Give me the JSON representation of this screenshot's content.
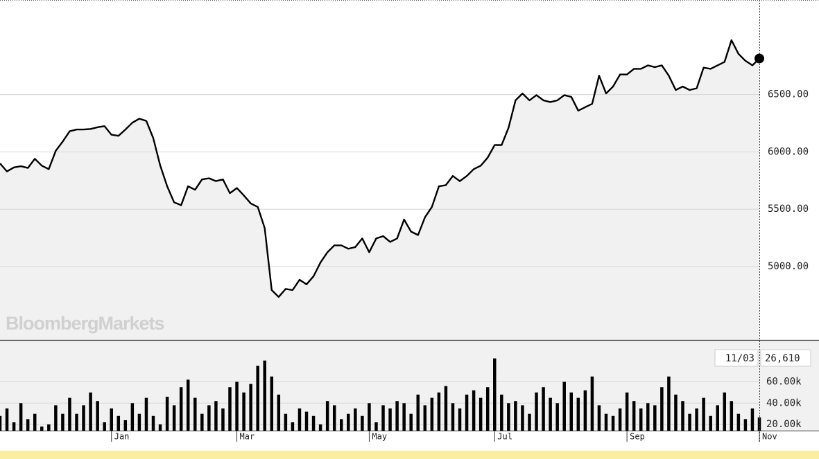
{
  "chart_data": [
    {
      "type": "line",
      "watermark": "BloombergMarkets",
      "color": "#000000",
      "area_color": "#f1f1f1",
      "categories": [
        null,
        null,
        null,
        null,
        null,
        null,
        null,
        null,
        null,
        null,
        null,
        null,
        null,
        null,
        null,
        null,
        "Jan",
        null,
        null,
        null,
        null,
        null,
        null,
        null,
        null,
        null,
        null,
        null,
        null,
        null,
        null,
        null,
        null,
        null,
        "Mar",
        null,
        null,
        null,
        null,
        null,
        null,
        null,
        null,
        null,
        null,
        null,
        null,
        null,
        null,
        null,
        null,
        null,
        null,
        "May",
        null,
        null,
        null,
        null,
        null,
        null,
        null,
        null,
        null,
        null,
        null,
        null,
        null,
        null,
        null,
        null,
        null,
        "Jul",
        null,
        null,
        null,
        null,
        null,
        null,
        null,
        null,
        null,
        null,
        null,
        null,
        null,
        null,
        null,
        null,
        null,
        null,
        "Sep",
        null,
        null,
        null,
        null,
        null,
        null,
        null,
        null,
        null,
        null,
        null,
        null,
        null,
        null,
        null,
        null,
        null,
        null,
        "Nov"
      ],
      "values": [
        5900,
        5830,
        5865,
        5875,
        5860,
        5940,
        5880,
        5850,
        6010,
        6090,
        6180,
        6195,
        6195,
        6200,
        6215,
        6225,
        6150,
        6140,
        6195,
        6255,
        6290,
        6270,
        6120,
        5880,
        5700,
        5560,
        5535,
        5700,
        5670,
        5760,
        5770,
        5745,
        5760,
        5640,
        5685,
        5620,
        5550,
        5520,
        5335,
        4795,
        4735,
        4805,
        4795,
        4885,
        4845,
        4915,
        5035,
        5125,
        5185,
        5185,
        5155,
        5170,
        5245,
        5125,
        5245,
        5265,
        5215,
        5245,
        5410,
        5305,
        5275,
        5430,
        5520,
        5700,
        5710,
        5790,
        5745,
        5790,
        5850,
        5880,
        5950,
        6060,
        6060,
        6210,
        6450,
        6510,
        6450,
        6495,
        6450,
        6435,
        6450,
        6495,
        6480,
        6360,
        6390,
        6420,
        6665,
        6510,
        6570,
        6675,
        6675,
        6725,
        6725,
        6755,
        6740,
        6755,
        6665,
        6540,
        6570,
        6540,
        6555,
        6735,
        6725,
        6755,
        6785,
        6975,
        6855,
        6795,
        6755,
        6815
      ],
      "ylim": [
        4360,
        7325
      ],
      "yticks": [
        {
          "value": 5000,
          "label": "5000.00"
        },
        {
          "value": 5500,
          "label": "5500.00"
        },
        {
          "value": 6000,
          "label": "6000.00"
        },
        {
          "value": 6500,
          "label": "6500.00"
        }
      ],
      "grid": true
    },
    {
      "type": "bar",
      "color": "#000000",
      "cursor_label": "11/03",
      "values": [
        28000,
        35000,
        22000,
        40000,
        25000,
        30000,
        18000,
        20000,
        38000,
        30000,
        45000,
        30000,
        38000,
        50000,
        42000,
        22000,
        35000,
        28000,
        24000,
        40000,
        30000,
        45000,
        28000,
        20000,
        46000,
        38000,
        55000,
        62000,
        45000,
        30000,
        38000,
        42000,
        35000,
        55000,
        60000,
        50000,
        58000,
        75000,
        80000,
        65000,
        48000,
        30000,
        22000,
        35000,
        32000,
        28000,
        20000,
        42000,
        38000,
        25000,
        30000,
        35000,
        28000,
        40000,
        22000,
        38000,
        35000,
        42000,
        40000,
        30000,
        48000,
        38000,
        45000,
        50000,
        56000,
        40000,
        35000,
        48000,
        52000,
        45000,
        55000,
        82000,
        48000,
        40000,
        42000,
        38000,
        30000,
        50000,
        55000,
        45000,
        40000,
        60000,
        50000,
        45000,
        52000,
        65000,
        38000,
        30000,
        28000,
        35000,
        50000,
        42000,
        35000,
        40000,
        38000,
        55000,
        65000,
        48000,
        42000,
        30000,
        35000,
        45000,
        28000,
        38000,
        50000,
        42000,
        30000,
        25000,
        35000,
        26610
      ],
      "value_labels": [
        null,
        null,
        null,
        null,
        null,
        null,
        null,
        null,
        null,
        null,
        null,
        null,
        null,
        null,
        null,
        null,
        null,
        null,
        null,
        null,
        null,
        null,
        null,
        null,
        null,
        null,
        null,
        null,
        null,
        null,
        null,
        null,
        null,
        null,
        null,
        null,
        null,
        null,
        null,
        null,
        null,
        null,
        null,
        null,
        null,
        null,
        null,
        null,
        null,
        null,
        null,
        null,
        null,
        null,
        null,
        null,
        null,
        null,
        null,
        null,
        null,
        null,
        null,
        null,
        null,
        null,
        null,
        null,
        null,
        null,
        null,
        null,
        null,
        null,
        null,
        null,
        null,
        null,
        null,
        null,
        null,
        null,
        null,
        null,
        null,
        null,
        null,
        null,
        null,
        null,
        null,
        null,
        null,
        null,
        null,
        null,
        null,
        null,
        null,
        null,
        null,
        null,
        null,
        null,
        null,
        null,
        null,
        null,
        null,
        "26,610"
      ],
      "ylim": [
        14200,
        98700
      ],
      "yticks": [
        {
          "value": 20000,
          "label": "20.00k"
        },
        {
          "value": 40000,
          "label": "40.00k"
        },
        {
          "value": 60000,
          "label": "60.00k"
        }
      ],
      "grid": true
    }
  ]
}
